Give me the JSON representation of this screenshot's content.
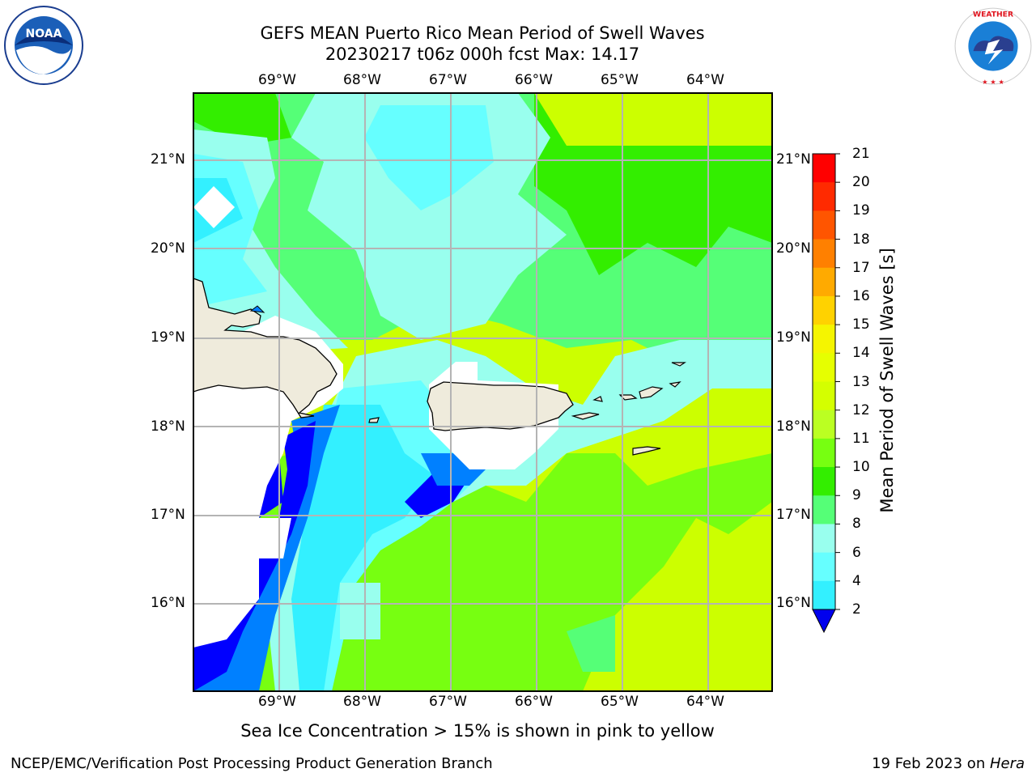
{
  "title_line1": "GEFS MEAN Puerto Rico Mean Period of Swell Waves",
  "title_line2": "20230217 t06z 000h fcst   Max: 14.17",
  "logos": {
    "left": "NOAA",
    "right": "NATIONAL WEATHER SERVICE"
  },
  "map": {
    "lon_ticks": [
      "69°W",
      "68°W",
      "67°W",
      "66°W",
      "65°W",
      "64°W"
    ],
    "lat_ticks": [
      "21°N",
      "20°N",
      "19°N",
      "18°N",
      "17°N",
      "16°N"
    ]
  },
  "colorbar": {
    "title": "Mean Period of Swell Waves [s]",
    "levels": [
      "21",
      "20",
      "19",
      "18",
      "17",
      "16",
      "15",
      "14",
      "13",
      "12",
      "11",
      "10",
      "9",
      "8",
      "6",
      "4",
      "2"
    ],
    "colors": [
      "#ff0000",
      "#ff2a00",
      "#ff5500",
      "#ff8000",
      "#ffaa00",
      "#ffd200",
      "#f5f500",
      "#e6ff00",
      "#d4ff00",
      "#bbff22",
      "#77ff11",
      "#33ee00",
      "#55ff77",
      "#99ffee",
      "#66ffff",
      "#33f0ff",
      "#00ffff",
      "#0080ff",
      "#0000ff"
    ],
    "under_color": "#0000ee"
  },
  "caption": "Sea Ice Concentration > 15% is shown in pink to yellow",
  "footer_left": "NCEP/EMC/Verification Post Processing Product Generation Branch",
  "footer_date": "19 Feb 2023 on ",
  "footer_host": "Hera"
}
